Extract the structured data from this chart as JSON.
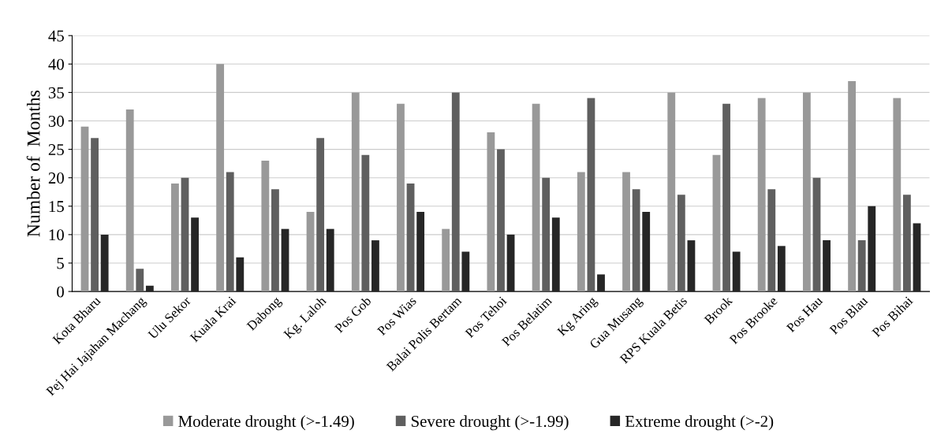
{
  "chart_data": {
    "type": "bar",
    "ylabel": "Number of  Months",
    "categories": [
      "Kota Bharu",
      "Pej Hai Jajahan Machang",
      "Ulu Sekor",
      "Kuala Krai",
      "Dabong",
      "Kg. Laloh",
      "Pos Gob",
      "Pos Wias",
      "Balai Polis Bertam",
      "Pos Tehoi",
      "Pos Belatim",
      "Kg Aring",
      "Gua Musang",
      "RPS Kuala Betis",
      "Brook",
      "Pos Brooke",
      "Pos Hau",
      "Pos Blau",
      "Pos Bihai"
    ],
    "series": [
      {
        "name": "Moderate drought (>-1.49)",
        "color": "#999999",
        "values": [
          29,
          32,
          19,
          40,
          23,
          14,
          35,
          33,
          11,
          28,
          33,
          21,
          21,
          35,
          24,
          34,
          35,
          37,
          34
        ]
      },
      {
        "name": "Severe drought (>-1.99)",
        "color": "#5f5f5f",
        "values": [
          27,
          4,
          20,
          21,
          18,
          27,
          24,
          19,
          35,
          25,
          20,
          34,
          18,
          17,
          33,
          18,
          20,
          9,
          17
        ]
      },
      {
        "name": "Extreme drought (>-2)",
        "color": "#262626",
        "values": [
          10,
          1,
          13,
          6,
          11,
          11,
          9,
          14,
          7,
          10,
          13,
          3,
          14,
          9,
          7,
          8,
          9,
          15,
          12
        ]
      }
    ],
    "ylim": [
      0,
      45
    ],
    "yticks": [
      0,
      5,
      10,
      15,
      20,
      25,
      30,
      35,
      40,
      45
    ],
    "grid": "y",
    "legend": "bottom"
  }
}
